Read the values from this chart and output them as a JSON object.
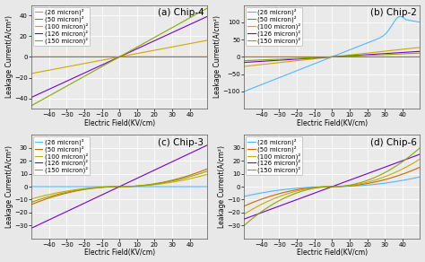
{
  "subplots": [
    {
      "title": "(a) Chip-4",
      "ylim": [
        -50,
        50
      ],
      "yticks": [
        -40,
        -20,
        0,
        20,
        40
      ],
      "series": [
        {
          "label": "(26 micron)²",
          "color": "#4db8ff",
          "type": "flat",
          "slope": 0.0,
          "scale": 0.0
        },
        {
          "label": "(50 micron)²",
          "color": "#cc6600",
          "type": "flat",
          "slope": 0.0,
          "scale": 0.0
        },
        {
          "label": "(100 micron)²",
          "color": "#ccaa00",
          "type": "linear",
          "slope": 0.32,
          "scale": 0.0
        },
        {
          "label": "(126 micron)²",
          "color": "#7700cc",
          "type": "linear",
          "slope": 0.78,
          "scale": 0.0
        },
        {
          "label": "(150 micron)²",
          "color": "#88aa00",
          "type": "linear",
          "slope": 0.94,
          "scale": 0.0
        }
      ]
    },
    {
      "title": "(b) Chip-2",
      "ylim": [
        -150,
        150
      ],
      "yticks": [
        -100,
        -50,
        0,
        50,
        100
      ],
      "series": [
        {
          "label": "(26 micron)²",
          "color": "#4db8ff",
          "type": "chip2_26",
          "slope": 0.0,
          "scale": 0.0
        },
        {
          "label": "(50 micron)²",
          "color": "#cc6600",
          "type": "flat",
          "slope": 0.0,
          "scale": 0.0
        },
        {
          "label": "(100 micron)²",
          "color": "#ccaa00",
          "type": "linear",
          "slope": 0.55,
          "scale": 0.0
        },
        {
          "label": "(126 micron)²",
          "color": "#7700cc",
          "type": "linear",
          "slope": 0.32,
          "scale": 0.0
        },
        {
          "label": "(150 micron)²",
          "color": "#88aa00",
          "type": "linear",
          "slope": 0.22,
          "scale": 0.0
        }
      ]
    },
    {
      "title": "(c) Chip-3",
      "ylim": [
        -40,
        40
      ],
      "yticks": [
        -30,
        -20,
        -10,
        0,
        10,
        20,
        30
      ],
      "series": [
        {
          "label": "(26 micron)²",
          "color": "#4db8ff",
          "type": "flat",
          "slope": 0.0,
          "scale": 0.0
        },
        {
          "label": "(50 micron)²",
          "color": "#cc6600",
          "type": "quad",
          "slope": 0.0,
          "scale": 0.0055
        },
        {
          "label": "(100 micron)²",
          "color": "#ccaa00",
          "type": "quad",
          "slope": 0.0,
          "scale": 0.0038
        },
        {
          "label": "(126 micron)²",
          "color": "#7700cc",
          "type": "linear",
          "slope": 0.64,
          "scale": 0.0
        },
        {
          "label": "(150 micron)²",
          "color": "#88aa00",
          "type": "quad",
          "slope": 0.0,
          "scale": 0.0048
        }
      ]
    },
    {
      "title": "(d) Chip-6",
      "ylim": [
        -40,
        40
      ],
      "yticks": [
        -30,
        -20,
        -10,
        0,
        10,
        20,
        30
      ],
      "series": [
        {
          "label": "(26 micron)²",
          "color": "#4db8ff",
          "type": "quad",
          "slope": 0.0,
          "scale": 0.003
        },
        {
          "label": "(50 micron)²",
          "color": "#cc6600",
          "type": "quad",
          "slope": 0.0,
          "scale": 0.006
        },
        {
          "label": "(100 micron)²",
          "color": "#ccaa00",
          "type": "quad",
          "slope": 0.0,
          "scale": 0.0085
        },
        {
          "label": "(126 micron)²",
          "color": "#7700cc",
          "type": "linear",
          "slope": 0.5,
          "scale": 0.0
        },
        {
          "label": "(150 micron)²",
          "color": "#88aa00",
          "type": "quad",
          "slope": 0.0,
          "scale": 0.012
        }
      ]
    }
  ],
  "xlim": [
    -50,
    50
  ],
  "xticks": [
    -40,
    -30,
    -20,
    -10,
    0,
    10,
    20,
    30,
    40
  ],
  "xlabel": "Electric Field(KV/cm)",
  "ylabel": "Leakage Current(A/cm²)",
  "legend_fontsize": 5.0,
  "title_fontsize": 7.5,
  "axis_fontsize": 5.5,
  "tick_fontsize": 5.0,
  "bg_color": "#eaeaea",
  "grid_color": "#ffffff",
  "fig_bg": "#e8e8e8"
}
